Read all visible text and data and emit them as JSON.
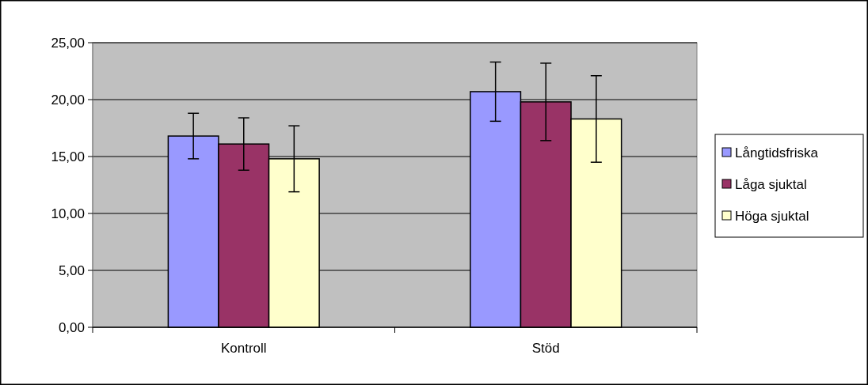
{
  "chart_data": {
    "type": "bar",
    "categories": [
      "Kontroll",
      "Stöd"
    ],
    "series": [
      {
        "name": "Långtidsfriska",
        "color": "#9999ff",
        "values": [
          16.8,
          20.7
        ],
        "errors": [
          2.0,
          2.6
        ]
      },
      {
        "name": "Låga sjuktal",
        "color": "#993366",
        "values": [
          16.1,
          19.8
        ],
        "errors": [
          2.3,
          3.4
        ]
      },
      {
        "name": "Höga sjuktal",
        "color": "#ffffcc",
        "values": [
          14.8,
          18.3
        ],
        "errors": [
          2.9,
          3.8
        ]
      }
    ],
    "ylim": [
      0,
      25
    ],
    "yticks": [
      {
        "value": 0,
        "label": "0,00"
      },
      {
        "value": 5,
        "label": "5,00"
      },
      {
        "value": 10,
        "label": "10,00"
      },
      {
        "value": 15,
        "label": "15,00"
      },
      {
        "value": 20,
        "label": "20,00"
      },
      {
        "value": 25,
        "label": "25,00"
      }
    ],
    "grid": "y",
    "legend": "right"
  }
}
